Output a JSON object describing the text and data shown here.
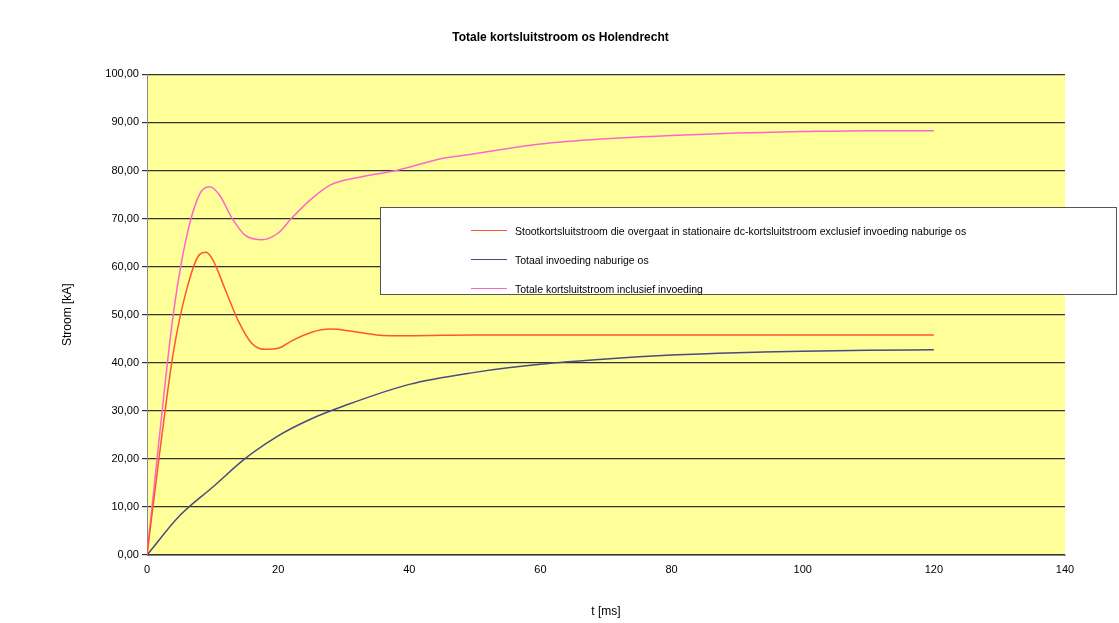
{
  "chart_data": {
    "type": "line",
    "title": "Totale kortsluitstroom os Holendrecht",
    "xlabel": "t [ms]",
    "ylabel": "Stroom [kA]",
    "xlim": [
      0,
      140
    ],
    "xticks": [
      0,
      20,
      40,
      60,
      80,
      100,
      120,
      140
    ],
    "ylim": [
      0,
      100
    ],
    "yticks": [
      {
        "value": 0,
        "label": "0,00"
      },
      {
        "value": 10,
        "label": "10,00"
      },
      {
        "value": 20,
        "label": "20,00"
      },
      {
        "value": 30,
        "label": "30,00"
      },
      {
        "value": 40,
        "label": "40,00"
      },
      {
        "value": 50,
        "label": "50,00"
      },
      {
        "value": 60,
        "label": "60,00"
      },
      {
        "value": 70,
        "label": "70,00"
      },
      {
        "value": 80,
        "label": "80,00"
      },
      {
        "value": 90,
        "label": "90,00"
      },
      {
        "value": 100,
        "label": "100,00"
      }
    ],
    "grid": "y",
    "legend": "right",
    "marker": "none",
    "line_style": "solid",
    "series": [
      {
        "name": "Stootkortsluitstroom die overgaat in stationaire dc-kortsluitstroom exclusief invoeding naburige os",
        "color": "#ff5533",
        "x": [
          0,
          2,
          4,
          6,
          8,
          9,
          10,
          12,
          14,
          16,
          18,
          20,
          22,
          25,
          28,
          31,
          35,
          40,
          50,
          60,
          80,
          100,
          120
        ],
        "values": [
          0,
          22,
          42,
          55,
          62.5,
          63,
          61.5,
          55,
          48.5,
          44,
          42.8,
          43,
          44.5,
          46.3,
          47,
          46.6,
          45.8,
          45.6,
          45.8,
          45.8,
          45.8,
          45.8,
          45.8
        ]
      },
      {
        "name": "Totaal invoeding naburige os",
        "color": "#4a4a80",
        "x": [
          0,
          5,
          10,
          15,
          20,
          25,
          30,
          40,
          50,
          60,
          70,
          80,
          90,
          100,
          110,
          120
        ],
        "values": [
          0,
          8.2,
          14.1,
          20.1,
          24.8,
          28.3,
          31,
          35.5,
          38,
          39.7,
          40.8,
          41.6,
          42.1,
          42.4,
          42.6,
          42.7
        ]
      },
      {
        "name": "Totale kortsluitstroom inclusief invoeding",
        "color": "#ff66cc",
        "x": [
          0,
          2,
          4,
          6,
          8,
          9.5,
          11,
          13,
          15,
          17.5,
          20,
          22,
          25,
          28,
          32,
          38,
          45,
          50,
          60,
          70,
          80,
          90,
          100,
          110,
          120
        ],
        "values": [
          0,
          26,
          50,
          66,
          75,
          76.6,
          75,
          70,
          66.5,
          65.6,
          67,
          70,
          74,
          77,
          78.5,
          80,
          82.5,
          83.5,
          85.5,
          86.6,
          87.3,
          87.8,
          88.1,
          88.3,
          88.3
        ]
      }
    ]
  }
}
